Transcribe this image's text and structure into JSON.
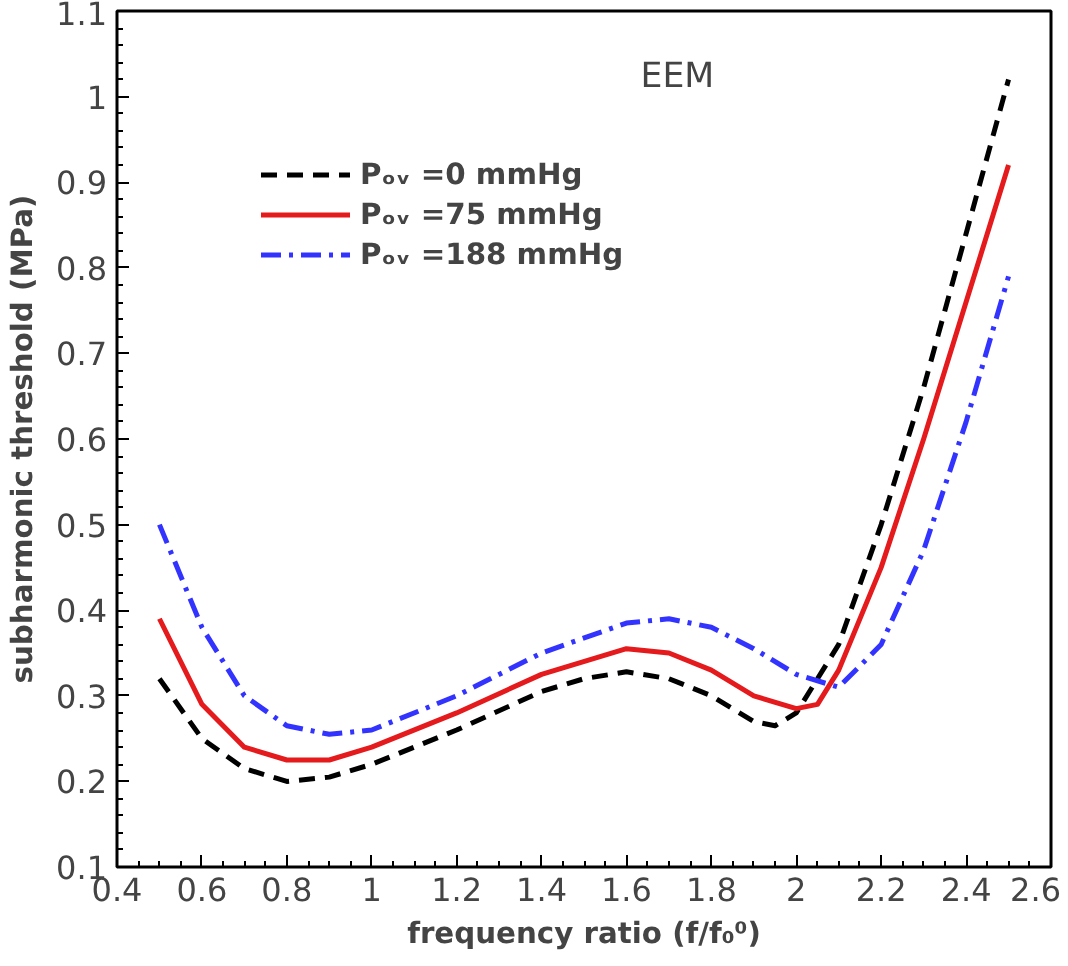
{
  "chart_data": {
    "type": "line",
    "xlabel": "frequency ratio (f/f₀⁰)",
    "ylabel": "subharmonic threshold (MPa)",
    "annotations": [
      "EEM"
    ],
    "xlim": [
      0.4,
      2.6
    ],
    "ylim": [
      0.1,
      1.1
    ],
    "xticks": [
      0.4,
      0.6,
      0.8,
      1,
      1.2,
      1.4,
      1.6,
      1.8,
      2,
      2.2,
      2.4,
      2.6
    ],
    "yticks": [
      0.1,
      0.2,
      0.3,
      0.4,
      0.5,
      0.6,
      0.7,
      0.8,
      0.9,
      1,
      1.1
    ],
    "grid": false,
    "legend": "top left",
    "marker": "none",
    "series": [
      {
        "name": "Pₒᵥ =0 mmHg",
        "color": "#000000",
        "line_style": "dashed",
        "x": [
          0.5,
          0.6,
          0.7,
          0.8,
          0.9,
          1.0,
          1.2,
          1.4,
          1.5,
          1.6,
          1.7,
          1.8,
          1.9,
          1.95,
          2.0,
          2.1,
          2.2,
          2.3,
          2.4,
          2.5
        ],
        "values": [
          0.32,
          0.25,
          0.215,
          0.2,
          0.205,
          0.22,
          0.26,
          0.305,
          0.32,
          0.328,
          0.32,
          0.3,
          0.27,
          0.265,
          0.28,
          0.36,
          0.5,
          0.66,
          0.84,
          1.02
        ]
      },
      {
        "name": "Pₒᵥ =75 mmHg",
        "color": "#e41a1c",
        "line_style": "solid",
        "x": [
          0.5,
          0.6,
          0.7,
          0.8,
          0.9,
          1.0,
          1.2,
          1.4,
          1.6,
          1.7,
          1.8,
          1.9,
          2.0,
          2.05,
          2.1,
          2.2,
          2.3,
          2.4,
          2.5
        ],
        "values": [
          0.39,
          0.29,
          0.24,
          0.225,
          0.225,
          0.24,
          0.28,
          0.325,
          0.355,
          0.35,
          0.33,
          0.3,
          0.285,
          0.29,
          0.33,
          0.45,
          0.6,
          0.76,
          0.92
        ]
      },
      {
        "name": "Pₒᵥ =188 mmHg",
        "color": "#3333ff",
        "line_style": "dashdot",
        "x": [
          0.5,
          0.6,
          0.7,
          0.8,
          0.9,
          1.0,
          1.2,
          1.4,
          1.6,
          1.7,
          1.8,
          1.9,
          2.0,
          2.1,
          2.2,
          2.3,
          2.4,
          2.5
        ],
        "values": [
          0.5,
          0.38,
          0.3,
          0.265,
          0.255,
          0.26,
          0.3,
          0.35,
          0.385,
          0.39,
          0.38,
          0.355,
          0.325,
          0.31,
          0.36,
          0.47,
          0.62,
          0.79
        ]
      }
    ]
  }
}
